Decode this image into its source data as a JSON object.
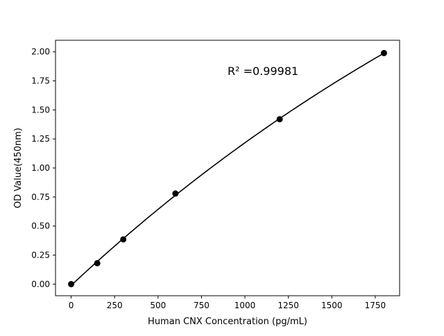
{
  "chart_data": {
    "type": "scatter",
    "title": "",
    "xlabel": "Human CNX Concentration (pg/mL)",
    "ylabel": "OD Value(450nm)",
    "xlim": [
      -90,
      1890
    ],
    "ylim": [
      -0.1,
      2.1
    ],
    "xticks": [
      0,
      250,
      500,
      750,
      1000,
      1250,
      1500,
      1750
    ],
    "xtick_labels": [
      "0",
      "250",
      "500",
      "750",
      "1000",
      "1250",
      "1500",
      "1750"
    ],
    "yticks": [
      0,
      0.25,
      0.5,
      0.75,
      1.0,
      1.25,
      1.5,
      1.75,
      2.0
    ],
    "ytick_labels": [
      "0.00",
      "0.25",
      "0.50",
      "0.75",
      "1.00",
      "1.25",
      "1.50",
      "1.75",
      "2.00"
    ],
    "grid": false,
    "series": [
      {
        "x": [
          0,
          150,
          300,
          600,
          1200,
          1800
        ],
        "y": [
          0.0,
          0.18,
          0.385,
          0.78,
          1.42,
          1.99
        ],
        "color": "#000000",
        "marker": "circle",
        "fit_line": true
      }
    ],
    "annotation": "R² =0.99981"
  }
}
